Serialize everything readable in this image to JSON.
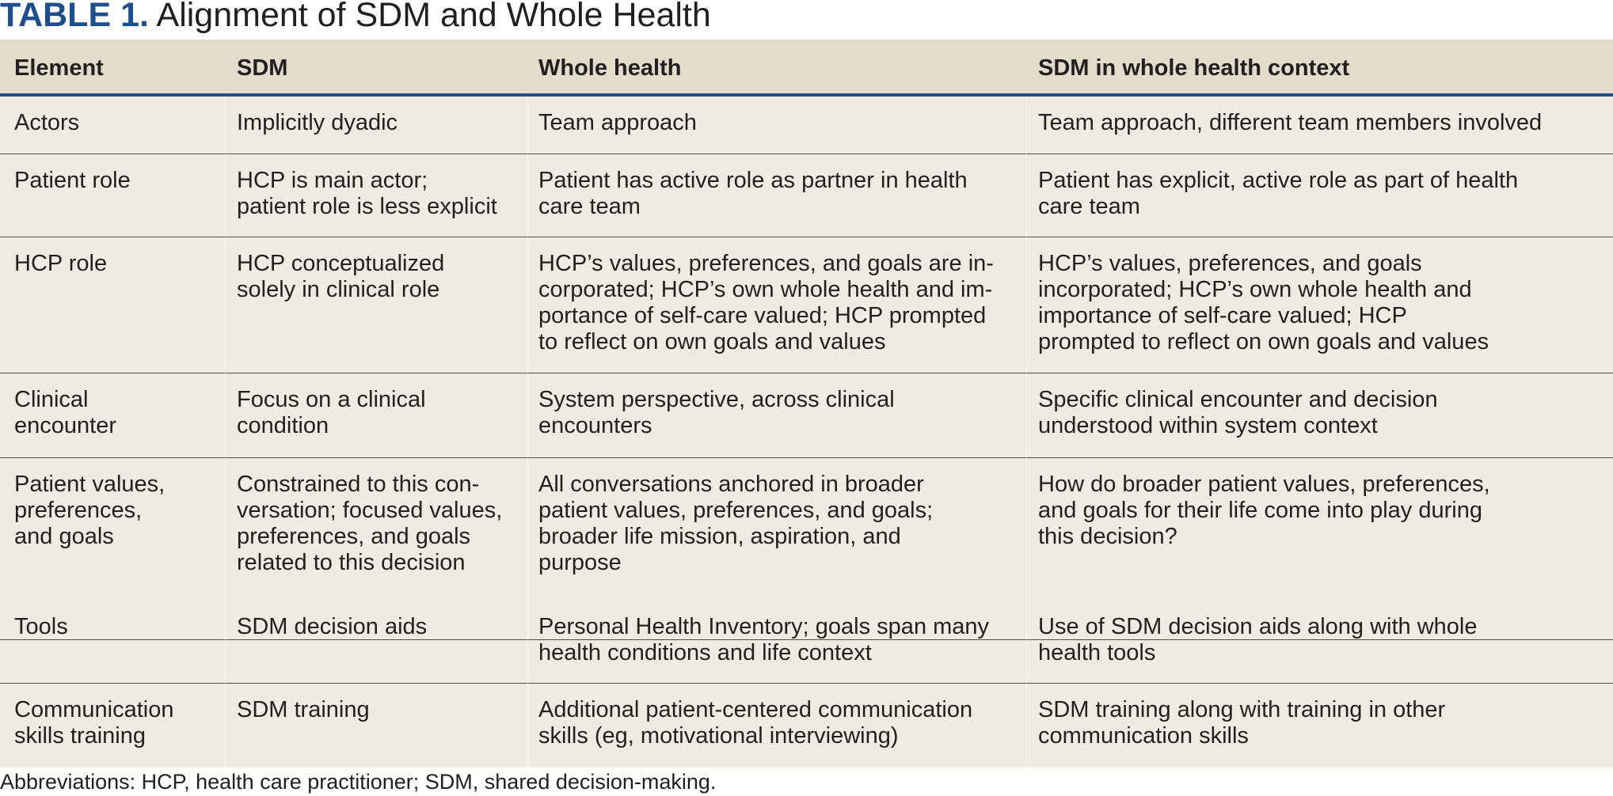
{
  "title": {
    "label": "TABLE 1.",
    "text": "Alignment of SDM and Whole Health"
  },
  "table": {
    "headers": [
      "Element",
      "SDM",
      "Whole health",
      "SDM in whole health context"
    ],
    "rows": [
      [
        "Actors",
        "Implicitly dyadic",
        "Team approach",
        "Team approach, different team members involved"
      ],
      [
        "Patient role",
        "HCP is main actor;\npatient role is less explicit",
        "Patient has active role as partner in health\ncare team",
        "Patient has explicit, active role as part of health\ncare team"
      ],
      [
        "HCP role",
        "HCP conceptualized\nsolely in clinical role",
        "HCP’s values, preferences, and goals are in-\ncorporated; HCP’s own whole health and im-\nportance of self-care valued; HCP prompted\nto reflect on own goals and values",
        "HCP’s values, preferences, and goals\nincorporated; HCP’s own whole health and\nimportance of self-care valued; HCP\nprompted to reflect on own goals and values"
      ],
      [
        "Clinical\nencounter",
        "Focus on a clinical\ncondition",
        "System perspective, across clinical\nencounters",
        "Specific clinical encounter and decision\nunderstood within system context"
      ],
      [
        "Patient values,\npreferences,\nand goals",
        "Constrained to this con-\nversation; focused values,\npreferences, and goals\nrelated to this decision",
        "All conversations anchored in broader\npatient values, preferences, and goals;\nbroader life mission, aspiration, and\npurpose",
        "How do broader patient values, preferences,\nand goals for their life come into play during\nthis decision?"
      ],
      [
        "Tools",
        "SDM decision aids",
        "Personal Health Inventory; goals span many\nhealth conditions and life context",
        "Use of SDM decision aids along with whole\nhealth tools"
      ],
      [
        "Communication\nskills training",
        "SDM training",
        "Additional patient-centered communication\nskills (eg, motivational interviewing)",
        "SDM training along with training in other\ncommunication skills"
      ]
    ]
  },
  "footnote": "Abbreviations: HCP, health care practitioner; SDM, shared decision-making."
}
